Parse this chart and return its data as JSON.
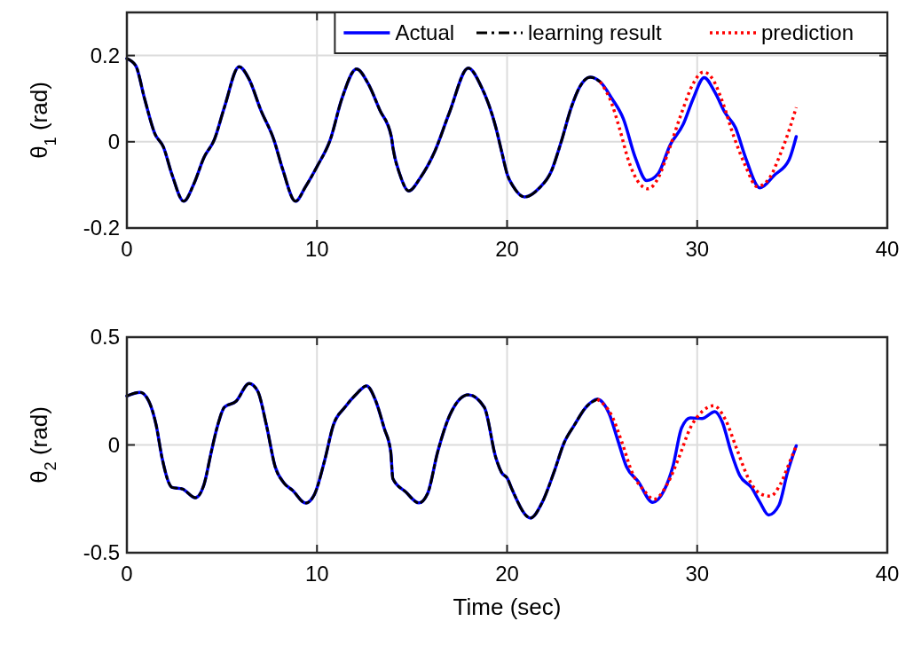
{
  "chart_data": [
    {
      "type": "line",
      "ylabel": "θ$_{1}$ (rad)",
      "xlim": [
        0,
        40
      ],
      "xticks": [
        0,
        10,
        20,
        30,
        40
      ],
      "ylim": [
        -0.2,
        0.3
      ],
      "yticks": [
        -0.2,
        0,
        0.2
      ],
      "grid": true,
      "legend": "top right",
      "tick_labels": true,
      "series": [
        {
          "name": "Actual",
          "color": "#0000ff",
          "line_style": "solid",
          "x": [
            0,
            0.47,
            0.93,
            1.47,
            1.92,
            2.38,
            2.99,
            3.53,
            4.06,
            4.6,
            5.13,
            5.9,
            6.43,
            7.04,
            7.73,
            8.19,
            8.87,
            9.4,
            10.02,
            10.7,
            11.31,
            12.08,
            12.69,
            13.3,
            13.91,
            14.0,
            14.37,
            14.83,
            15.44,
            16.2,
            16.96,
            17.96,
            18.64,
            19.41,
            19.71,
            20.02,
            20.33,
            20.93,
            21.7,
            22.31,
            22.84,
            23.38,
            23.83,
            24.37,
            24.9,
            25.52,
            26.12,
            26.74,
            27.35,
            27.96,
            28.57,
            29.26,
            29.79,
            30.37,
            30.93,
            31.47,
            32.01,
            32.54,
            33.3,
            34.07,
            34.83,
            35.21
          ],
          "values": [
            0.193,
            0.176,
            0.1,
            0.019,
            -0.012,
            -0.077,
            -0.138,
            -0.097,
            -0.036,
            0.005,
            0.08,
            0.174,
            0.145,
            0.074,
            0.005,
            -0.063,
            -0.138,
            -0.104,
            -0.056,
            0.005,
            0.1,
            0.169,
            0.135,
            0.074,
            0.012,
            -0.015,
            -0.077,
            -0.114,
            -0.083,
            -0.022,
            0.067,
            0.171,
            0.128,
            0.033,
            -0.022,
            -0.077,
            -0.104,
            -0.128,
            -0.107,
            -0.07,
            -0.001,
            0.08,
            0.128,
            0.15,
            0.139,
            0.1,
            0.053,
            -0.036,
            -0.09,
            -0.073,
            -0.008,
            0.04,
            0.1,
            0.149,
            0.115,
            0.067,
            0.033,
            -0.036,
            -0.107,
            -0.077,
            -0.042,
            0.012
          ]
        },
        {
          "name": "learning result",
          "color": "#000000",
          "line_style": "dashed",
          "x": [
            0,
            0.47,
            0.93,
            1.47,
            1.92,
            2.38,
            2.99,
            3.53,
            4.06,
            4.6,
            5.13,
            5.9,
            6.43,
            7.04,
            7.73,
            8.19,
            8.87,
            9.4,
            10.02,
            10.7,
            11.31,
            12.08,
            12.69,
            13.3,
            13.91,
            14.0,
            14.37,
            14.83,
            15.44,
            16.2,
            16.96,
            17.96,
            18.64,
            19.41,
            19.71,
            20.02,
            20.33,
            20.93,
            21.7,
            22.31,
            22.84,
            23.38,
            23.83,
            24.37,
            24.9
          ],
          "values": [
            0.193,
            0.176,
            0.1,
            0.019,
            -0.012,
            -0.077,
            -0.138,
            -0.097,
            -0.036,
            0.005,
            0.08,
            0.174,
            0.145,
            0.074,
            0.005,
            -0.063,
            -0.138,
            -0.104,
            -0.056,
            0.005,
            0.1,
            0.169,
            0.135,
            0.074,
            0.012,
            -0.015,
            -0.077,
            -0.114,
            -0.083,
            -0.022,
            0.067,
            0.171,
            0.128,
            0.033,
            -0.022,
            -0.077,
            -0.104,
            -0.128,
            -0.107,
            -0.07,
            -0.001,
            0.08,
            0.128,
            0.15,
            0.139
          ]
        },
        {
          "name": "prediction",
          "color": "#ff0000",
          "line_style": "dotted",
          "x": [
            24.9,
            25.52,
            25.9,
            26.43,
            26.97,
            27.42,
            27.96,
            28.49,
            29.18,
            29.79,
            30.33,
            30.86,
            31.32,
            31.93,
            32.54,
            33.15,
            33.76,
            34.37,
            34.83,
            35.21
          ],
          "values": [
            0.139,
            0.087,
            0.033,
            -0.049,
            -0.097,
            -0.109,
            -0.083,
            -0.022,
            0.067,
            0.135,
            0.162,
            0.142,
            0.094,
            0.012,
            -0.056,
            -0.104,
            -0.087,
            -0.029,
            0.026,
            0.08
          ]
        }
      ]
    },
    {
      "type": "line",
      "xlabel": "Time (sec)",
      "ylabel": "θ$_{2}$ (rad)",
      "xlim": [
        0,
        40
      ],
      "xticks": [
        0,
        10,
        20,
        30,
        40
      ],
      "ylim": [
        -0.5,
        0.5
      ],
      "yticks": [
        -0.5,
        0,
        0.5
      ],
      "grid": true,
      "legend": false,
      "tick_labels": true,
      "series": [
        {
          "color": "#0000ff",
          "line_style": "solid",
          "x": [
            0,
            0.7,
            1.16,
            1.54,
            1.85,
            2.38,
            2.92,
            3.6,
            4.06,
            4.44,
            4.74,
            5.13,
            5.74,
            6.43,
            6.88,
            7.34,
            7.8,
            8.26,
            8.72,
            9.4,
            9.86,
            10.4,
            10.86,
            11.47,
            12.08,
            12.61,
            13.07,
            13.53,
            13.88,
            13.99,
            14.67,
            15.36,
            15.82,
            16.35,
            16.96,
            17.96,
            18.8,
            19.41,
            19.71,
            20.02,
            20.25,
            21.24,
            21.85,
            22.46,
            23.0,
            23.54,
            24.15,
            24.75,
            25.36,
            25.82,
            26.28,
            26.89,
            27.66,
            28.26,
            28.72,
            29.18,
            29.64,
            30.25,
            30.93,
            31.32,
            31.78,
            32.24,
            32.85,
            33.3,
            33.76,
            34.3,
            34.75,
            35.21
          ],
          "values": [
            0.227,
            0.244,
            0.202,
            0.092,
            -0.06,
            -0.197,
            -0.204,
            -0.245,
            -0.183,
            -0.032,
            0.079,
            0.175,
            0.202,
            0.285,
            0.25,
            0.092,
            -0.101,
            -0.176,
            -0.211,
            -0.27,
            -0.231,
            -0.073,
            0.092,
            0.175,
            0.237,
            0.274,
            0.209,
            0.079,
            -0.032,
            -0.156,
            -0.218,
            -0.269,
            -0.225,
            -0.032,
            0.133,
            0.233,
            0.175,
            -0.06,
            -0.128,
            -0.156,
            -0.204,
            -0.339,
            -0.266,
            -0.128,
            0.01,
            0.092,
            0.175,
            0.212,
            0.147,
            0.023,
            -0.101,
            -0.169,
            -0.266,
            -0.211,
            -0.101,
            0.079,
            0.126,
            0.122,
            0.154,
            0.106,
            -0.032,
            -0.142,
            -0.197,
            -0.266,
            -0.325,
            -0.28,
            -0.128,
            -0.004
          ]
        },
        {
          "color": "#000000",
          "line_style": "dashed",
          "x": [
            0,
            0.7,
            1.16,
            1.54,
            1.85,
            2.38,
            2.92,
            3.6,
            4.06,
            4.44,
            4.74,
            5.13,
            5.74,
            6.43,
            6.88,
            7.34,
            7.8,
            8.26,
            8.72,
            9.4,
            9.86,
            10.4,
            10.86,
            11.47,
            12.08,
            12.61,
            13.07,
            13.53,
            13.88,
            13.99,
            14.67,
            15.36,
            15.82,
            16.35,
            16.96,
            17.96,
            18.8,
            19.41,
            19.71,
            20.02,
            20.25,
            21.24,
            21.85,
            22.46,
            23.0,
            23.54,
            24.15,
            24.75
          ],
          "values": [
            0.227,
            0.244,
            0.202,
            0.092,
            -0.06,
            -0.197,
            -0.204,
            -0.245,
            -0.183,
            -0.032,
            0.079,
            0.175,
            0.202,
            0.285,
            0.25,
            0.092,
            -0.101,
            -0.176,
            -0.211,
            -0.27,
            -0.231,
            -0.073,
            0.092,
            0.175,
            0.237,
            0.274,
            0.209,
            0.079,
            -0.032,
            -0.156,
            -0.218,
            -0.269,
            -0.225,
            -0.032,
            0.133,
            0.233,
            0.175,
            -0.06,
            -0.128,
            -0.156,
            -0.204,
            -0.339,
            -0.266,
            -0.128,
            0.01,
            0.092,
            0.175,
            0.212
          ]
        },
        {
          "color": "#ff0000",
          "line_style": "dotted",
          "x": [
            24.75,
            25.52,
            26.05,
            26.58,
            27.2,
            27.73,
            28.42,
            29.03,
            29.64,
            30.25,
            30.86,
            31.47,
            32.08,
            32.7,
            33.3,
            33.84,
            34.37,
            34.83,
            35.21
          ],
          "values": [
            0.212,
            0.133,
            0.01,
            -0.128,
            -0.211,
            -0.252,
            -0.183,
            -0.06,
            0.079,
            0.154,
            0.182,
            0.12,
            -0.018,
            -0.156,
            -0.225,
            -0.238,
            -0.183,
            -0.087,
            -0.004
          ]
        }
      ]
    }
  ]
}
